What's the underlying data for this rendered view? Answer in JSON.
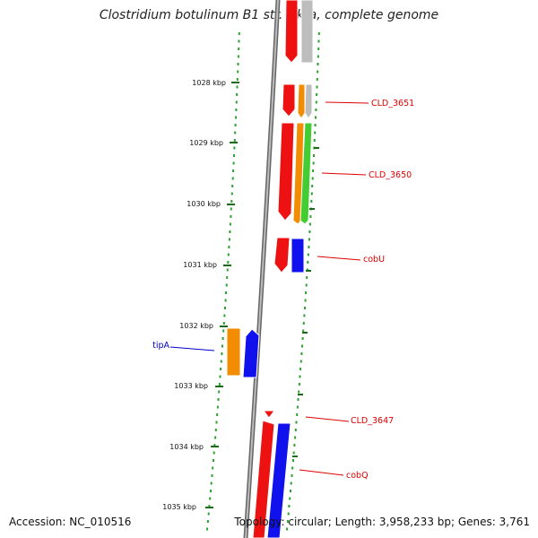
{
  "title": "Clostridium botulinum B1 str. Okra, complete genome",
  "accession": "Accession: NC_010516",
  "summary": "Topology: circular; Length: 3,958,233 bp; Genes: 3,761",
  "colors": {
    "background": "#ffffff",
    "backbone": "#8a8a8a",
    "tick_major": "#1a6b1a",
    "tick_minor": "#2ea22e",
    "cds_red": "#ee1111",
    "cds_orange": "#f28c00",
    "cds_green": "#44cc33",
    "cds_gray": "#b8b8b8",
    "cds_blue": "#1111ee",
    "label_red": "#dd0000",
    "label_blue": "#0000cc"
  },
  "scale_ticks": [
    "1028 kbp",
    "1029 kbp",
    "1030 kbp",
    "1031 kbp",
    "1032 kbp",
    "1033 kbp",
    "1034 kbp",
    "1035 kbp"
  ],
  "gene_labels": [
    {
      "name": "CLD_3651",
      "color": "red"
    },
    {
      "name": "CLD_3650",
      "color": "red"
    },
    {
      "name": "cobU",
      "color": "red"
    },
    {
      "name": "tipA",
      "color": "blue"
    },
    {
      "name": "CLD_3647",
      "color": "red"
    },
    {
      "name": "cobQ",
      "color": "red"
    }
  ]
}
